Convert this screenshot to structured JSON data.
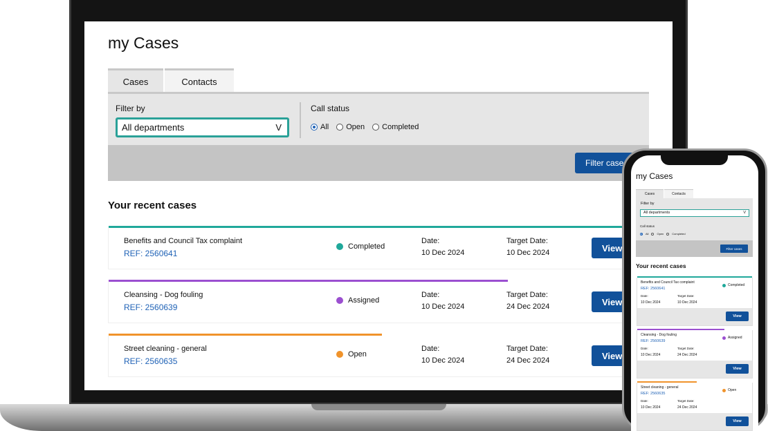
{
  "app": {
    "title": "my Cases",
    "tabs": [
      {
        "label": "Cases",
        "active": true
      },
      {
        "label": "Contacts",
        "active": false
      }
    ],
    "filter": {
      "filter_by_label": "Filter by",
      "department_value": "All departments",
      "call_status_label": "Call status",
      "status_options": [
        {
          "label": "All",
          "checked": true
        },
        {
          "label": "Open",
          "checked": false
        },
        {
          "label": "Completed",
          "checked": false
        }
      ],
      "filter_button_desktop": "Filter case",
      "filter_button_mobile": "Filter cases"
    },
    "recent_heading": "Your recent cases",
    "date_label": "Date:",
    "target_label": "Target Date:",
    "view_label": "View",
    "cases": [
      {
        "title": "Benefits and Council Tax complaint",
        "ref": "REF: 2560641",
        "status": "Completed",
        "status_color": "#1fa89a",
        "date": "10 Dec 2024",
        "target_date": "10 Dec 2024",
        "progress": 1.0
      },
      {
        "title": "Cleansing - Dog fouling",
        "ref": "REF: 2560639",
        "status": "Assigned",
        "status_color": "#9b4fd0",
        "date": "10 Dec 2024",
        "target_date": "24 Dec 2024",
        "progress": 0.76
      },
      {
        "title": "Street cleaning - general",
        "ref": "REF: 2560635",
        "status": "Open",
        "status_color": "#f0932b",
        "date": "10 Dec 2024",
        "target_date": "24 Dec 2024",
        "progress": 0.52
      }
    ]
  },
  "colors": {
    "accent_teal": "#2aa198",
    "primary_button": "#11519a",
    "link_blue": "#1f62b6",
    "panel_gray": "#e6e6e6",
    "bar_gray": "#c4c4c4"
  }
}
